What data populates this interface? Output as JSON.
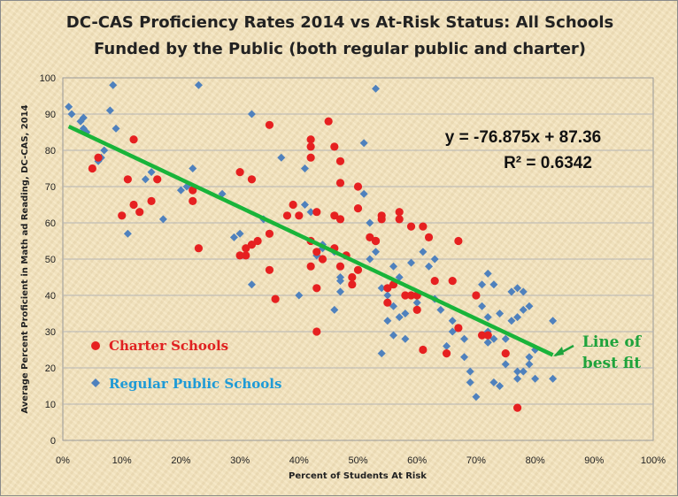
{
  "chart_data": {
    "type": "scatter",
    "title_line1": "DC-CAS Proficiency Rates 2014 vs At-Risk Status: All Schools",
    "title_line2": "Funded by the Public (both regular public and charter)",
    "xlabel": "Percent of Students At Risk",
    "ylabel": "Average Percent Proficient in Math ad Reading, DC-CAS, 2014",
    "xlim": [
      0,
      1
    ],
    "ylim": [
      0,
      100
    ],
    "x_ticks": [
      "0%",
      "10%",
      "20%",
      "30%",
      "40%",
      "50%",
      "60%",
      "70%",
      "80%",
      "90%",
      "100%"
    ],
    "y_ticks": [
      "0",
      "10",
      "20",
      "30",
      "40",
      "50",
      "60",
      "70",
      "80",
      "90",
      "100"
    ],
    "grid": true,
    "legend_position": "bottom-left",
    "trendline": {
      "slope": -76.875,
      "intercept": 87.36,
      "x_range": [
        0.01,
        0.83
      ],
      "equation": "y = -76.875x + 87.36",
      "r2_label": "R² = 0.6342",
      "annotation_line1": "Line of",
      "annotation_line2": "best fit",
      "color": "#19b43a"
    },
    "series": [
      {
        "name": "Charter Schools",
        "color": "#e62020",
        "marker": "circle",
        "points": [
          [
            0.05,
            75
          ],
          [
            0.06,
            78
          ],
          [
            0.11,
            72
          ],
          [
            0.12,
            83
          ],
          [
            0.12,
            65
          ],
          [
            0.13,
            63
          ],
          [
            0.15,
            66
          ],
          [
            0.16,
            72
          ],
          [
            0.1,
            62
          ],
          [
            0.23,
            53
          ],
          [
            0.22,
            66
          ],
          [
            0.22,
            69
          ],
          [
            0.3,
            74
          ],
          [
            0.3,
            51
          ],
          [
            0.31,
            51
          ],
          [
            0.32,
            72
          ],
          [
            0.31,
            53
          ],
          [
            0.32,
            54
          ],
          [
            0.33,
            55
          ],
          [
            0.35,
            47
          ],
          [
            0.35,
            57
          ],
          [
            0.36,
            39
          ],
          [
            0.35,
            87
          ],
          [
            0.38,
            62
          ],
          [
            0.39,
            65
          ],
          [
            0.4,
            62
          ],
          [
            0.42,
            81
          ],
          [
            0.42,
            83
          ],
          [
            0.42,
            78
          ],
          [
            0.42,
            55
          ],
          [
            0.43,
            63
          ],
          [
            0.42,
            48
          ],
          [
            0.43,
            52
          ],
          [
            0.44,
            50
          ],
          [
            0.43,
            42
          ],
          [
            0.43,
            30
          ],
          [
            0.45,
            88
          ],
          [
            0.46,
            81
          ],
          [
            0.46,
            53
          ],
          [
            0.46,
            62
          ],
          [
            0.47,
            77
          ],
          [
            0.47,
            71
          ],
          [
            0.47,
            61
          ],
          [
            0.47,
            48
          ],
          [
            0.48,
            51
          ],
          [
            0.49,
            45
          ],
          [
            0.49,
            43
          ],
          [
            0.5,
            47
          ],
          [
            0.5,
            64
          ],
          [
            0.5,
            70
          ],
          [
            0.52,
            56
          ],
          [
            0.53,
            55
          ],
          [
            0.53,
            55
          ],
          [
            0.54,
            61
          ],
          [
            0.54,
            62
          ],
          [
            0.55,
            38
          ],
          [
            0.55,
            42
          ],
          [
            0.56,
            43
          ],
          [
            0.57,
            63
          ],
          [
            0.57,
            61
          ],
          [
            0.58,
            40
          ],
          [
            0.59,
            59
          ],
          [
            0.59,
            40
          ],
          [
            0.6,
            40
          ],
          [
            0.6,
            36
          ],
          [
            0.61,
            25
          ],
          [
            0.61,
            59
          ],
          [
            0.62,
            56
          ],
          [
            0.63,
            44
          ],
          [
            0.65,
            24
          ],
          [
            0.66,
            44
          ],
          [
            0.67,
            31
          ],
          [
            0.67,
            55
          ],
          [
            0.7,
            40
          ],
          [
            0.71,
            29
          ],
          [
            0.72,
            29
          ],
          [
            0.75,
            24
          ],
          [
            0.77,
            9
          ]
        ]
      },
      {
        "name": "Regular Public Schools",
        "color": "#4f81bd",
        "marker": "diamond",
        "points": [
          [
            0.01,
            92
          ],
          [
            0.015,
            90
          ],
          [
            0.03,
            88
          ],
          [
            0.035,
            89
          ],
          [
            0.035,
            86
          ],
          [
            0.04,
            85
          ],
          [
            0.06,
            77
          ],
          [
            0.065,
            78
          ],
          [
            0.07,
            80
          ],
          [
            0.08,
            91
          ],
          [
            0.085,
            98
          ],
          [
            0.09,
            86
          ],
          [
            0.11,
            57
          ],
          [
            0.14,
            72
          ],
          [
            0.15,
            74
          ],
          [
            0.17,
            61
          ],
          [
            0.2,
            69
          ],
          [
            0.21,
            70
          ],
          [
            0.22,
            75
          ],
          [
            0.23,
            98
          ],
          [
            0.27,
            68
          ],
          [
            0.29,
            56
          ],
          [
            0.3,
            57
          ],
          [
            0.32,
            90
          ],
          [
            0.32,
            43
          ],
          [
            0.34,
            61
          ],
          [
            0.35,
            57
          ],
          [
            0.37,
            78
          ],
          [
            0.4,
            40
          ],
          [
            0.41,
            75
          ],
          [
            0.41,
            65
          ],
          [
            0.42,
            63
          ],
          [
            0.43,
            51
          ],
          [
            0.44,
            54
          ],
          [
            0.44,
            53
          ],
          [
            0.45,
            88
          ],
          [
            0.46,
            52
          ],
          [
            0.46,
            36
          ],
          [
            0.47,
            41
          ],
          [
            0.47,
            45
          ],
          [
            0.47,
            44
          ],
          [
            0.48,
            51
          ],
          [
            0.51,
            82
          ],
          [
            0.51,
            68
          ],
          [
            0.52,
            60
          ],
          [
            0.52,
            50
          ],
          [
            0.53,
            97
          ],
          [
            0.53,
            52
          ],
          [
            0.54,
            42
          ],
          [
            0.54,
            24
          ],
          [
            0.55,
            40
          ],
          [
            0.55,
            33
          ],
          [
            0.56,
            29
          ],
          [
            0.56,
            37
          ],
          [
            0.56,
            48
          ],
          [
            0.57,
            34
          ],
          [
            0.57,
            45
          ],
          [
            0.58,
            35
          ],
          [
            0.58,
            28
          ],
          [
            0.59,
            49
          ],
          [
            0.6,
            38
          ],
          [
            0.61,
            52
          ],
          [
            0.62,
            48
          ],
          [
            0.63,
            39
          ],
          [
            0.63,
            50
          ],
          [
            0.64,
            36
          ],
          [
            0.65,
            26
          ],
          [
            0.66,
            30
          ],
          [
            0.66,
            33
          ],
          [
            0.68,
            23
          ],
          [
            0.68,
            28
          ],
          [
            0.69,
            19
          ],
          [
            0.69,
            16
          ],
          [
            0.7,
            12
          ],
          [
            0.71,
            43
          ],
          [
            0.71,
            37
          ],
          [
            0.72,
            34
          ],
          [
            0.72,
            30
          ],
          [
            0.72,
            27
          ],
          [
            0.72,
            46
          ],
          [
            0.73,
            43
          ],
          [
            0.72,
            27
          ],
          [
            0.73,
            16
          ],
          [
            0.73,
            28
          ],
          [
            0.74,
            15
          ],
          [
            0.74,
            35
          ],
          [
            0.75,
            28
          ],
          [
            0.75,
            21
          ],
          [
            0.76,
            41
          ],
          [
            0.76,
            33
          ],
          [
            0.77,
            42
          ],
          [
            0.77,
            34
          ],
          [
            0.77,
            19
          ],
          [
            0.77,
            17
          ],
          [
            0.78,
            36
          ],
          [
            0.78,
            19
          ],
          [
            0.78,
            41
          ],
          [
            0.79,
            21
          ],
          [
            0.79,
            23
          ],
          [
            0.79,
            37
          ],
          [
            0.8,
            17
          ],
          [
            0.8,
            25
          ],
          [
            0.83,
            33
          ],
          [
            0.83,
            17
          ]
        ]
      }
    ]
  }
}
